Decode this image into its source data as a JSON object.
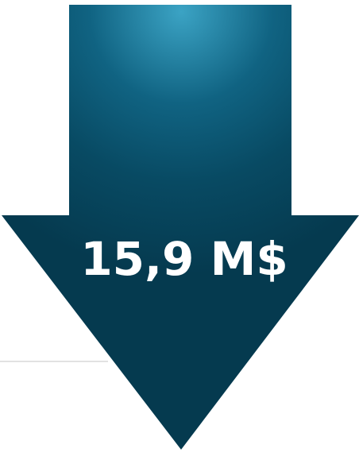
{
  "label": "15,9 M$"
}
